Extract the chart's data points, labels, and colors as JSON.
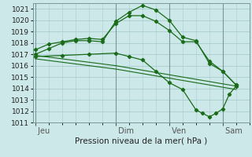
{
  "bg_color": "#cce8e8",
  "grid_color": "#aacccc",
  "line_color": "#1a6b1a",
  "title": "Pression niveau de la mer( hPa )",
  "ylim": [
    1011,
    1021.5
  ],
  "yticks": [
    1011,
    1012,
    1013,
    1014,
    1015,
    1016,
    1017,
    1018,
    1019,
    1020,
    1021
  ],
  "xtick_labels": [
    " Jeu",
    " Dim",
    " Ven",
    " Sam"
  ],
  "xtick_positions": [
    0,
    3,
    5,
    7
  ],
  "xlim": [
    -0.1,
    8.0
  ],
  "series1_x": [
    0,
    0.5,
    1,
    1.5,
    2,
    2.5,
    3,
    3.5,
    4,
    4.5,
    5,
    5.5,
    6,
    6.5,
    7,
    7.5
  ],
  "series1_y": [
    1017.0,
    1017.5,
    1018.0,
    1018.2,
    1018.2,
    1018.1,
    1019.9,
    1020.7,
    1021.3,
    1020.9,
    1020.0,
    1018.5,
    1018.2,
    1016.2,
    1015.5,
    1014.3
  ],
  "series2_x": [
    0,
    0.5,
    1,
    1.5,
    2,
    2.5,
    3,
    3.5,
    4,
    4.5,
    5,
    5.5,
    6,
    6.5,
    7,
    7.5
  ],
  "series2_y": [
    1017.4,
    1017.9,
    1018.1,
    1018.3,
    1018.4,
    1018.3,
    1019.7,
    1020.4,
    1020.4,
    1019.9,
    1019.1,
    1018.1,
    1018.1,
    1016.4,
    1015.5,
    1014.3
  ],
  "series3_x": [
    0,
    1,
    2,
    3,
    3.5,
    4,
    4.5,
    5,
    5.5,
    6,
    6.25,
    6.5,
    6.75,
    7,
    7.25,
    7.5
  ],
  "series3_y": [
    1016.8,
    1016.9,
    1017.0,
    1017.1,
    1016.8,
    1016.5,
    1015.5,
    1014.5,
    1013.9,
    1012.1,
    1011.8,
    1011.5,
    1011.8,
    1012.2,
    1013.5,
    1014.2
  ],
  "series4_x": [
    0,
    1,
    2,
    3,
    4,
    5,
    6,
    7,
    7.5
  ],
  "series4_y": [
    1016.9,
    1016.6,
    1016.3,
    1016.0,
    1015.6,
    1015.2,
    1014.8,
    1014.4,
    1014.2
  ],
  "series5_x": [
    0,
    1,
    2,
    3,
    4,
    5,
    6,
    7,
    7.5
  ],
  "series5_y": [
    1016.6,
    1016.3,
    1016.0,
    1015.7,
    1015.3,
    1014.9,
    1014.5,
    1014.1,
    1013.9
  ],
  "vline_positions": [
    0,
    3,
    5,
    7
  ]
}
